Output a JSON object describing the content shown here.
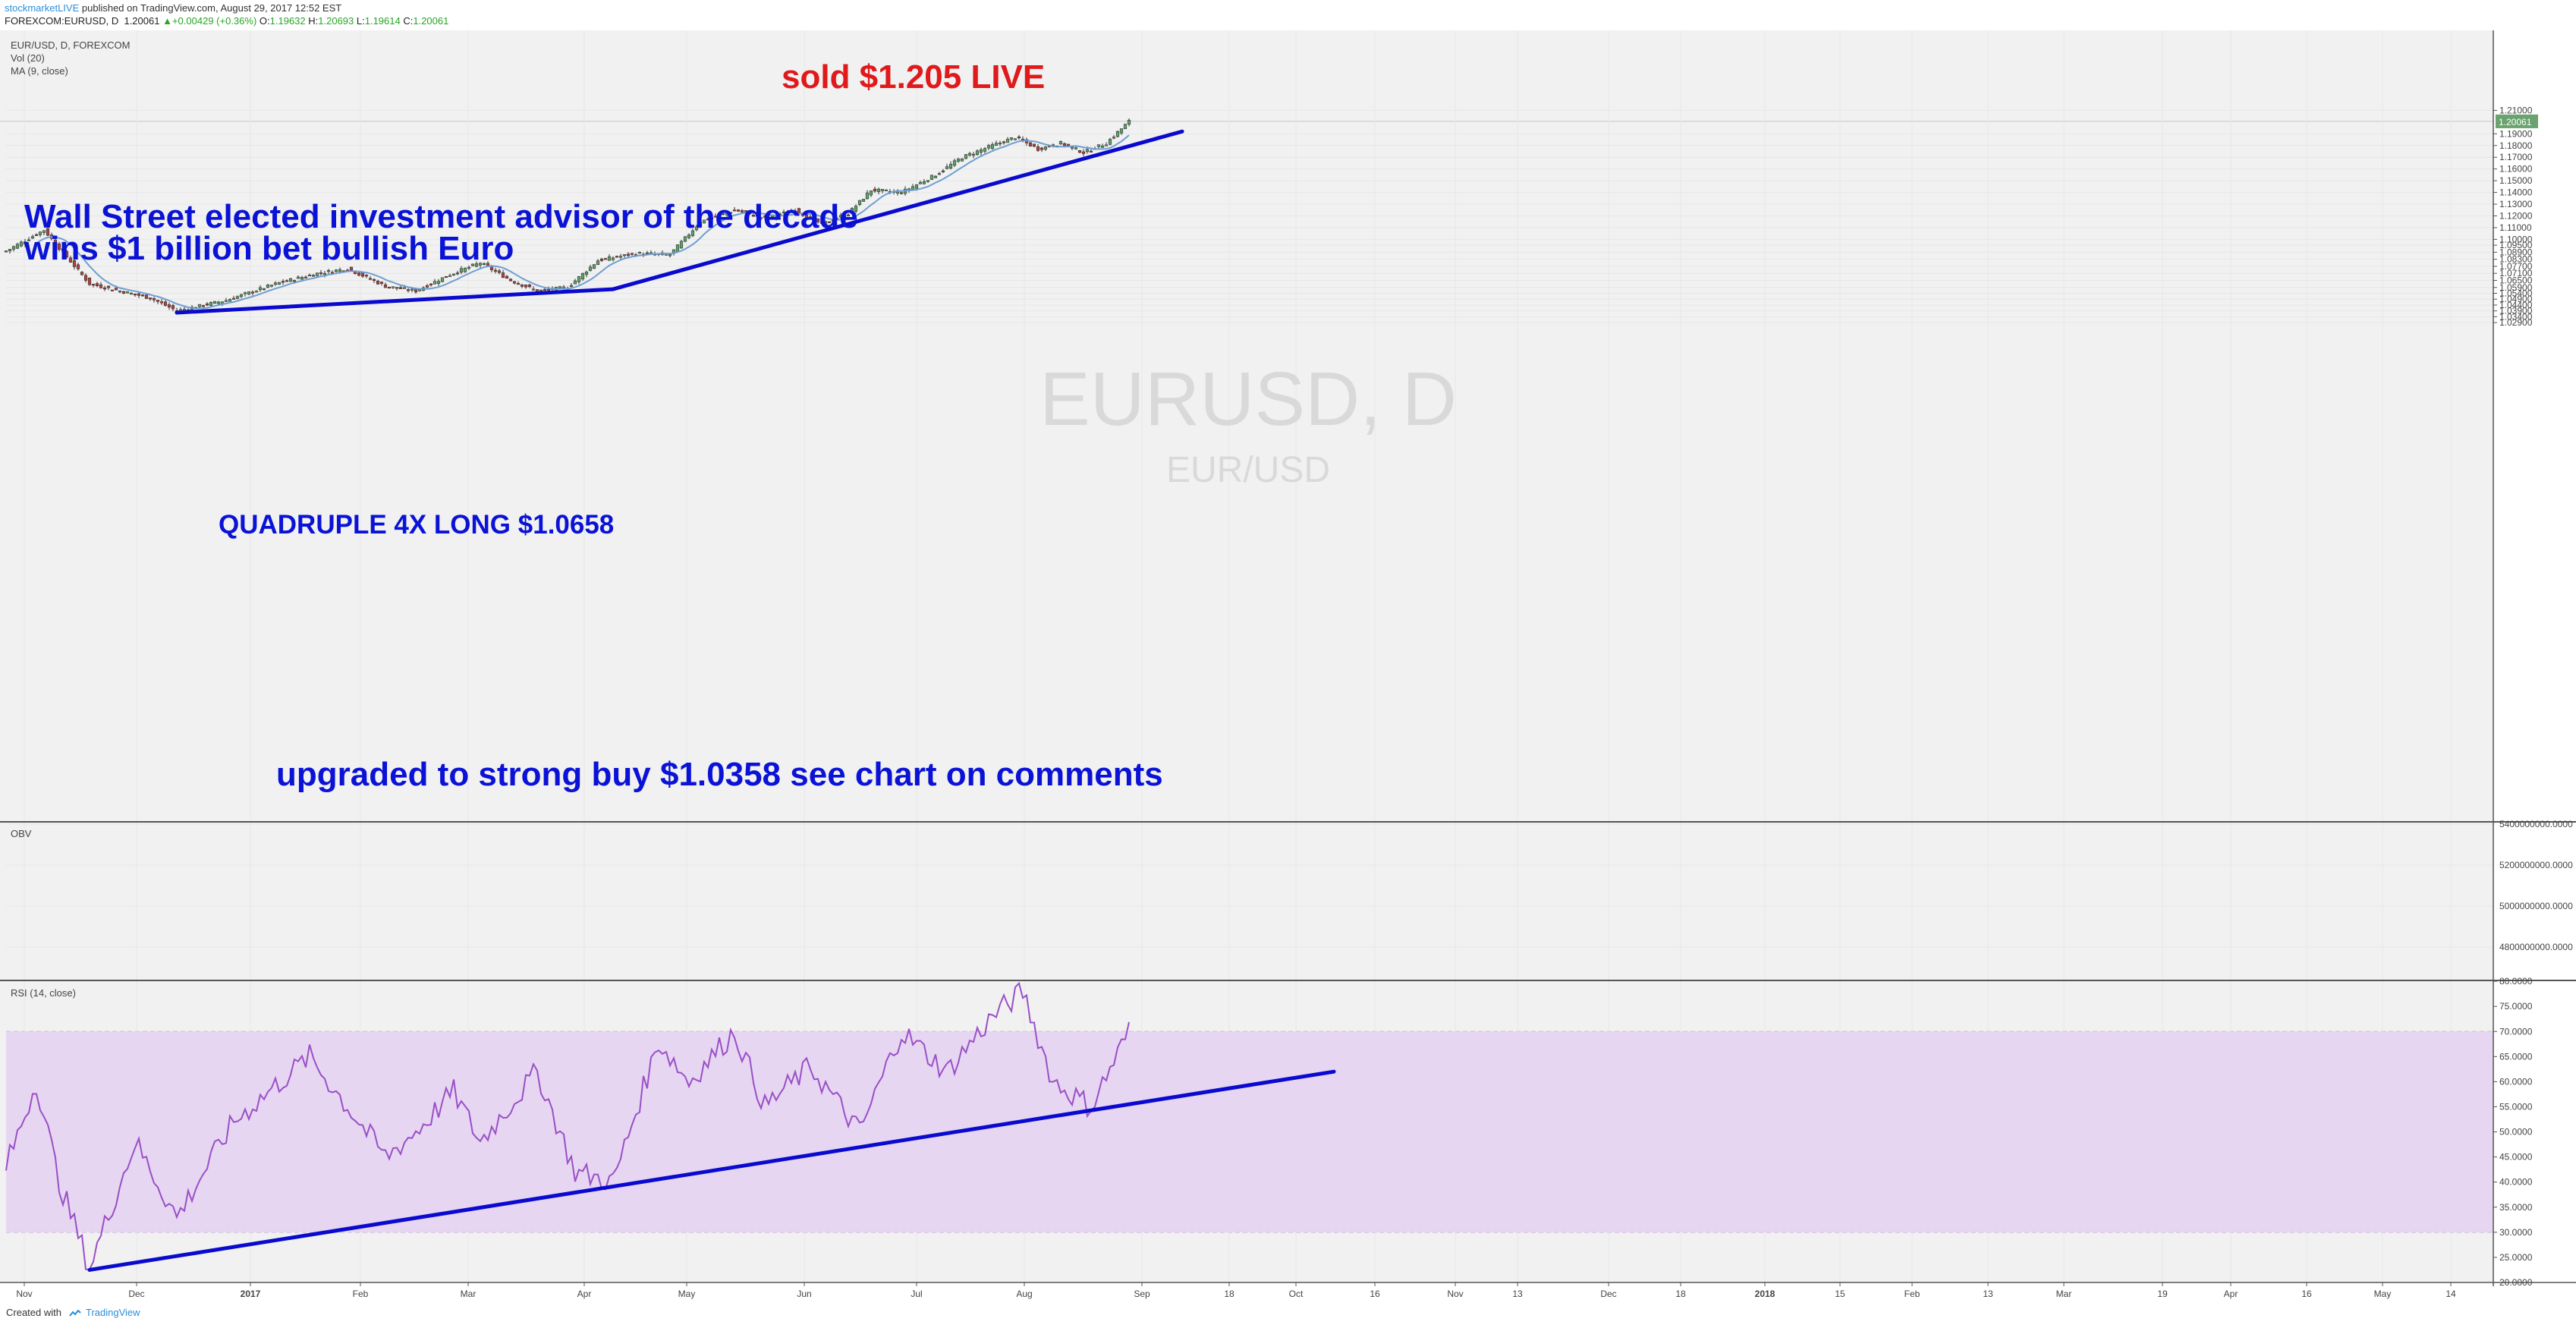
{
  "header": {
    "publisher": "stockmarketLIVE",
    "published_text": " published on TradingView.com, August 29, 2017 12:52 EST",
    "symbol_line": "FOREXCOM:EURUSD, D",
    "last": "1.20061",
    "change": "+0.00429 (+0.36%)",
    "o_label": "O:",
    "o": "1.19632",
    "h_label": "H:",
    "h": "1.20693",
    "l_label": "L:",
    "l": "1.19614",
    "c_label": "C:",
    "c": "1.20061"
  },
  "legend": {
    "line1": "EUR/USD, D, FOREXCOM",
    "line2": "Vol (20)",
    "line3": "MA (9, close)"
  },
  "watermark": {
    "main": "EURUSD, D",
    "sub": "EUR/USD"
  },
  "annotations": {
    "sold": "sold $1.205 LIVE",
    "headline1": "Wall Street elected investment advisor of the decade",
    "headline2": "wins $1 billion bet bullish Euro",
    "long": "QUADRUPLE 4X LONG $1.0658",
    "buy": "upgraded to strong buy $1.0358 see chart on comments"
  },
  "footer": {
    "created_with": "Created with",
    "brand": "TradingView"
  },
  "colors": {
    "bull": "#5aa469",
    "bear": "#b0413e",
    "trendline": "#0a0acf",
    "ma": "#6f9fd2",
    "rsi": "#9a4fc7",
    "rsi_band": "#e6d6f1",
    "sold_text": "#e0191b",
    "annotation_text": "#0a12d6",
    "last_price_tag": "#6aa36f"
  },
  "chart_data": {
    "type": "candlestick",
    "symbol": "EURUSD",
    "timeframe": "D",
    "price_axis": {
      "ticks": [
        "1.21000",
        "1.20061",
        "1.19000",
        "1.18000",
        "1.17000",
        "1.16000",
        "1.15000",
        "1.14000",
        "1.13000",
        "1.12000",
        "1.11000",
        "1.10000",
        "1.09500",
        "1.08900",
        "1.08300",
        "1.07700",
        "1.07100",
        "1.06500",
        "1.05900",
        "1.05400",
        "1.04900",
        "1.04400",
        "1.03900",
        "1.03400",
        "1.02900"
      ],
      "last_price_label": "1.20061"
    },
    "obv_axis": {
      "label": "OBV",
      "ticks": [
        "5400000000.0000",
        "5200000000.0000",
        "5000000000.0000",
        "4800000000.0000"
      ]
    },
    "rsi_axis": {
      "label": "RSI (14, close)",
      "ticks": [
        "80.0000",
        "75.0000",
        "70.0000",
        "65.0000",
        "60.0000",
        "55.0000",
        "50.0000",
        "45.0000",
        "40.0000",
        "35.0000",
        "30.0000",
        "25.0000",
        "20.0000"
      ],
      "range": [
        20,
        80
      ],
      "band": [
        30,
        70
      ]
    },
    "time_axis": [
      "Nov",
      "Dec",
      "2017",
      "Feb",
      "Mar",
      "Apr",
      "May",
      "Jun",
      "Jul",
      "Aug",
      "Sep",
      "18",
      "Oct",
      "16",
      "Nov",
      "13",
      "Dec",
      "18",
      "2018",
      "15",
      "Feb",
      "13",
      "Mar",
      "19",
      "Apr",
      "16",
      "May",
      "14"
    ],
    "anchors": [
      {
        "bar": 0,
        "price": 1.09
      },
      {
        "bar": 10,
        "price": 1.108
      },
      {
        "bar": 22,
        "price": 1.062
      },
      {
        "bar": 38,
        "price": 1.05
      },
      {
        "bar": 45,
        "price": 1.039
      },
      {
        "bar": 58,
        "price": 1.048
      },
      {
        "bar": 72,
        "price": 1.063
      },
      {
        "bar": 82,
        "price": 1.071
      },
      {
        "bar": 90,
        "price": 1.075
      },
      {
        "bar": 100,
        "price": 1.06
      },
      {
        "bar": 108,
        "price": 1.056
      },
      {
        "bar": 117,
        "price": 1.07
      },
      {
        "bar": 125,
        "price": 1.08
      },
      {
        "bar": 133,
        "price": 1.065
      },
      {
        "bar": 140,
        "price": 1.056
      },
      {
        "bar": 148,
        "price": 1.059
      },
      {
        "bar": 156,
        "price": 1.082
      },
      {
        "bar": 166,
        "price": 1.088
      },
      {
        "bar": 175,
        "price": 1.087
      },
      {
        "bar": 183,
        "price": 1.115
      },
      {
        "bar": 192,
        "price": 1.125
      },
      {
        "bar": 200,
        "price": 1.118
      },
      {
        "bar": 208,
        "price": 1.125
      },
      {
        "bar": 215,
        "price": 1.113
      },
      {
        "bar": 222,
        "price": 1.122
      },
      {
        "bar": 228,
        "price": 1.142
      },
      {
        "bar": 236,
        "price": 1.14
      },
      {
        "bar": 245,
        "price": 1.155
      },
      {
        "bar": 252,
        "price": 1.17
      },
      {
        "bar": 260,
        "price": 1.18
      },
      {
        "bar": 266,
        "price": 1.187
      },
      {
        "bar": 272,
        "price": 1.177
      },
      {
        "bar": 278,
        "price": 1.182
      },
      {
        "bar": 284,
        "price": 1.174
      },
      {
        "bar": 290,
        "price": 1.182
      },
      {
        "bar": 296,
        "price": 1.2006
      }
    ],
    "rsi_anchors": [
      {
        "bar": 0,
        "v": 43
      },
      {
        "bar": 8,
        "v": 60
      },
      {
        "bar": 14,
        "v": 40
      },
      {
        "bar": 22,
        "v": 23
      },
      {
        "bar": 34,
        "v": 48
      },
      {
        "bar": 45,
        "v": 33
      },
      {
        "bar": 60,
        "v": 52
      },
      {
        "bar": 80,
        "v": 65
      },
      {
        "bar": 100,
        "v": 45
      },
      {
        "bar": 108,
        "v": 50
      },
      {
        "bar": 118,
        "v": 58
      },
      {
        "bar": 125,
        "v": 48
      },
      {
        "bar": 140,
        "v": 62
      },
      {
        "bar": 150,
        "v": 42
      },
      {
        "bar": 160,
        "v": 40
      },
      {
        "bar": 172,
        "v": 68
      },
      {
        "bar": 180,
        "v": 60
      },
      {
        "bar": 192,
        "v": 70
      },
      {
        "bar": 200,
        "v": 55
      },
      {
        "bar": 212,
        "v": 63
      },
      {
        "bar": 225,
        "v": 50
      },
      {
        "bar": 236,
        "v": 70
      },
      {
        "bar": 248,
        "v": 62
      },
      {
        "bar": 260,
        "v": 73
      },
      {
        "bar": 268,
        "v": 78
      },
      {
        "bar": 276,
        "v": 60
      },
      {
        "bar": 286,
        "v": 55
      },
      {
        "bar": 296,
        "v": 70
      }
    ],
    "trendlines": [
      {
        "pane": "price",
        "from": {
          "bar": 45,
          "price": 1.0375
        },
        "to": {
          "bar": 160,
          "price": 1.0575
        }
      },
      {
        "pane": "price",
        "from": {
          "bar": 160,
          "price": 1.0575
        },
        "to": {
          "bar": 310,
          "price": 1.192
        }
      },
      {
        "pane": "rsi",
        "from": {
          "bar": 22,
          "v": 22.5
        },
        "to": {
          "bar": 350,
          "v": 62
        }
      }
    ]
  }
}
